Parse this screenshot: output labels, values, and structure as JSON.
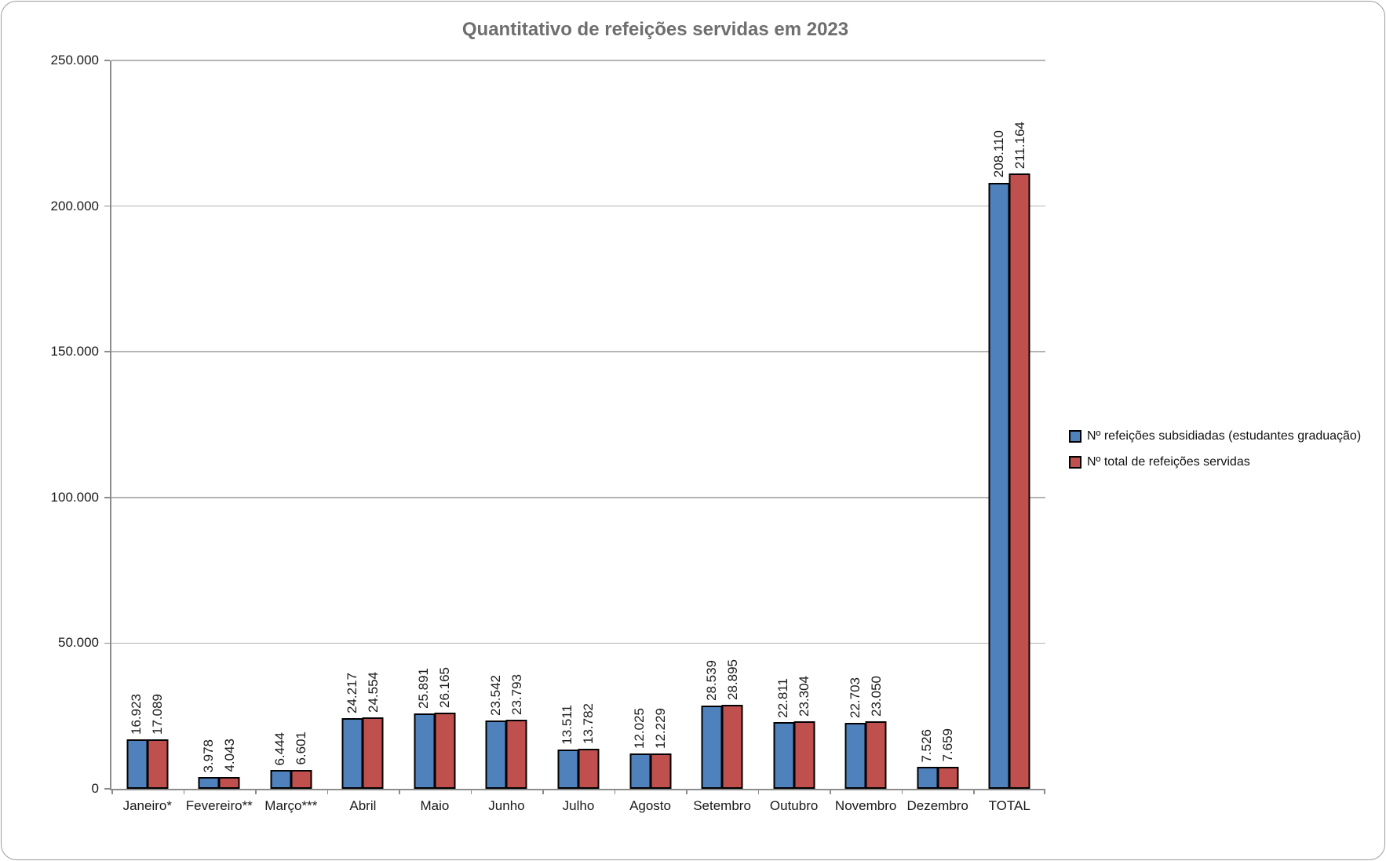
{
  "chart_data": {
    "type": "bar",
    "title": "Quantitativo de refeições servidas em 2023",
    "categories": [
      "Janeiro*",
      "Fevereiro**",
      "Março***",
      "Abril",
      "Maio",
      "Junho",
      "Julho",
      "Agosto",
      "Setembro",
      "Outubro",
      "Novembro",
      "Dezembro",
      "TOTAL"
    ],
    "series": [
      {
        "name": "Nº refeições subsidiadas (estudantes graduação)",
        "color": "#4F81BD",
        "values": [
          16923,
          3978,
          6444,
          24217,
          25891,
          23542,
          13511,
          12025,
          28539,
          22811,
          22703,
          7526,
          208110
        ],
        "labels": [
          "16.923",
          "3.978",
          "6.444",
          "24.217",
          "25.891",
          "23.542",
          "13.511",
          "12.025",
          "28.539",
          "22.811",
          "22.703",
          "7.526",
          "208.110"
        ]
      },
      {
        "name": "Nº total de refeições servidas",
        "color": "#C0504D",
        "values": [
          17089,
          4043,
          6601,
          24554,
          26165,
          23793,
          13782,
          12229,
          28895,
          23304,
          23050,
          7659,
          211164
        ],
        "labels": [
          "17.089",
          "4.043",
          "6.601",
          "24.554",
          "26.165",
          "23.793",
          "13.782",
          "12.229",
          "28.895",
          "23.304",
          "23.050",
          "7.659",
          "211.164"
        ]
      }
    ],
    "ylim": [
      0,
      250000
    ],
    "y_tick_values": [
      0,
      50000,
      100000,
      150000,
      200000,
      250000
    ],
    "y_tick_labels": [
      "0",
      "50.000",
      "100.000",
      "150.000",
      "200.000",
      "250.000"
    ],
    "grid": true,
    "legend_position": "right",
    "bar_outline_color": "#000000",
    "gridline_color": "#B4B4B4",
    "axis_color": "#8C8C8C",
    "title_color": "#6E6E6E"
  }
}
